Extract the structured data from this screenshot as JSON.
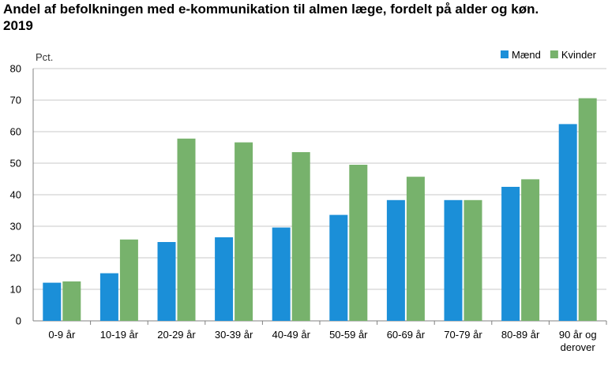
{
  "title_line1": "Andel af befolkningen med e-kommunikation til almen læge, fordelt på alder og køn.",
  "title_line2": "2019",
  "chart_data": {
    "type": "bar",
    "unit_label": "Pct.",
    "categories": [
      [
        "0-9 år"
      ],
      [
        "10-19 år"
      ],
      [
        "20-29 år"
      ],
      [
        "30-39 år"
      ],
      [
        "40-49 år"
      ],
      [
        "50-59 år"
      ],
      [
        "60-69 år"
      ],
      [
        "70-79 år"
      ],
      [
        "80-89 år"
      ],
      [
        "90 år og",
        "derover"
      ]
    ],
    "series": [
      {
        "name": "Mænd",
        "color": "#1b8fd8",
        "values": [
          12.1,
          15.1,
          25.0,
          26.5,
          29.6,
          33.6,
          38.3,
          38.3,
          42.5,
          62.4
        ]
      },
      {
        "name": "Kvinder",
        "color": "#77b26c",
        "values": [
          12.5,
          25.8,
          57.8,
          56.6,
          53.5,
          49.5,
          45.7,
          38.3,
          44.9,
          70.6
        ]
      }
    ],
    "ylim": [
      0,
      80
    ],
    "yticks": [
      0,
      10,
      20,
      30,
      40,
      50,
      60,
      70,
      80
    ],
    "grid": true,
    "legend_position": "top-right"
  }
}
